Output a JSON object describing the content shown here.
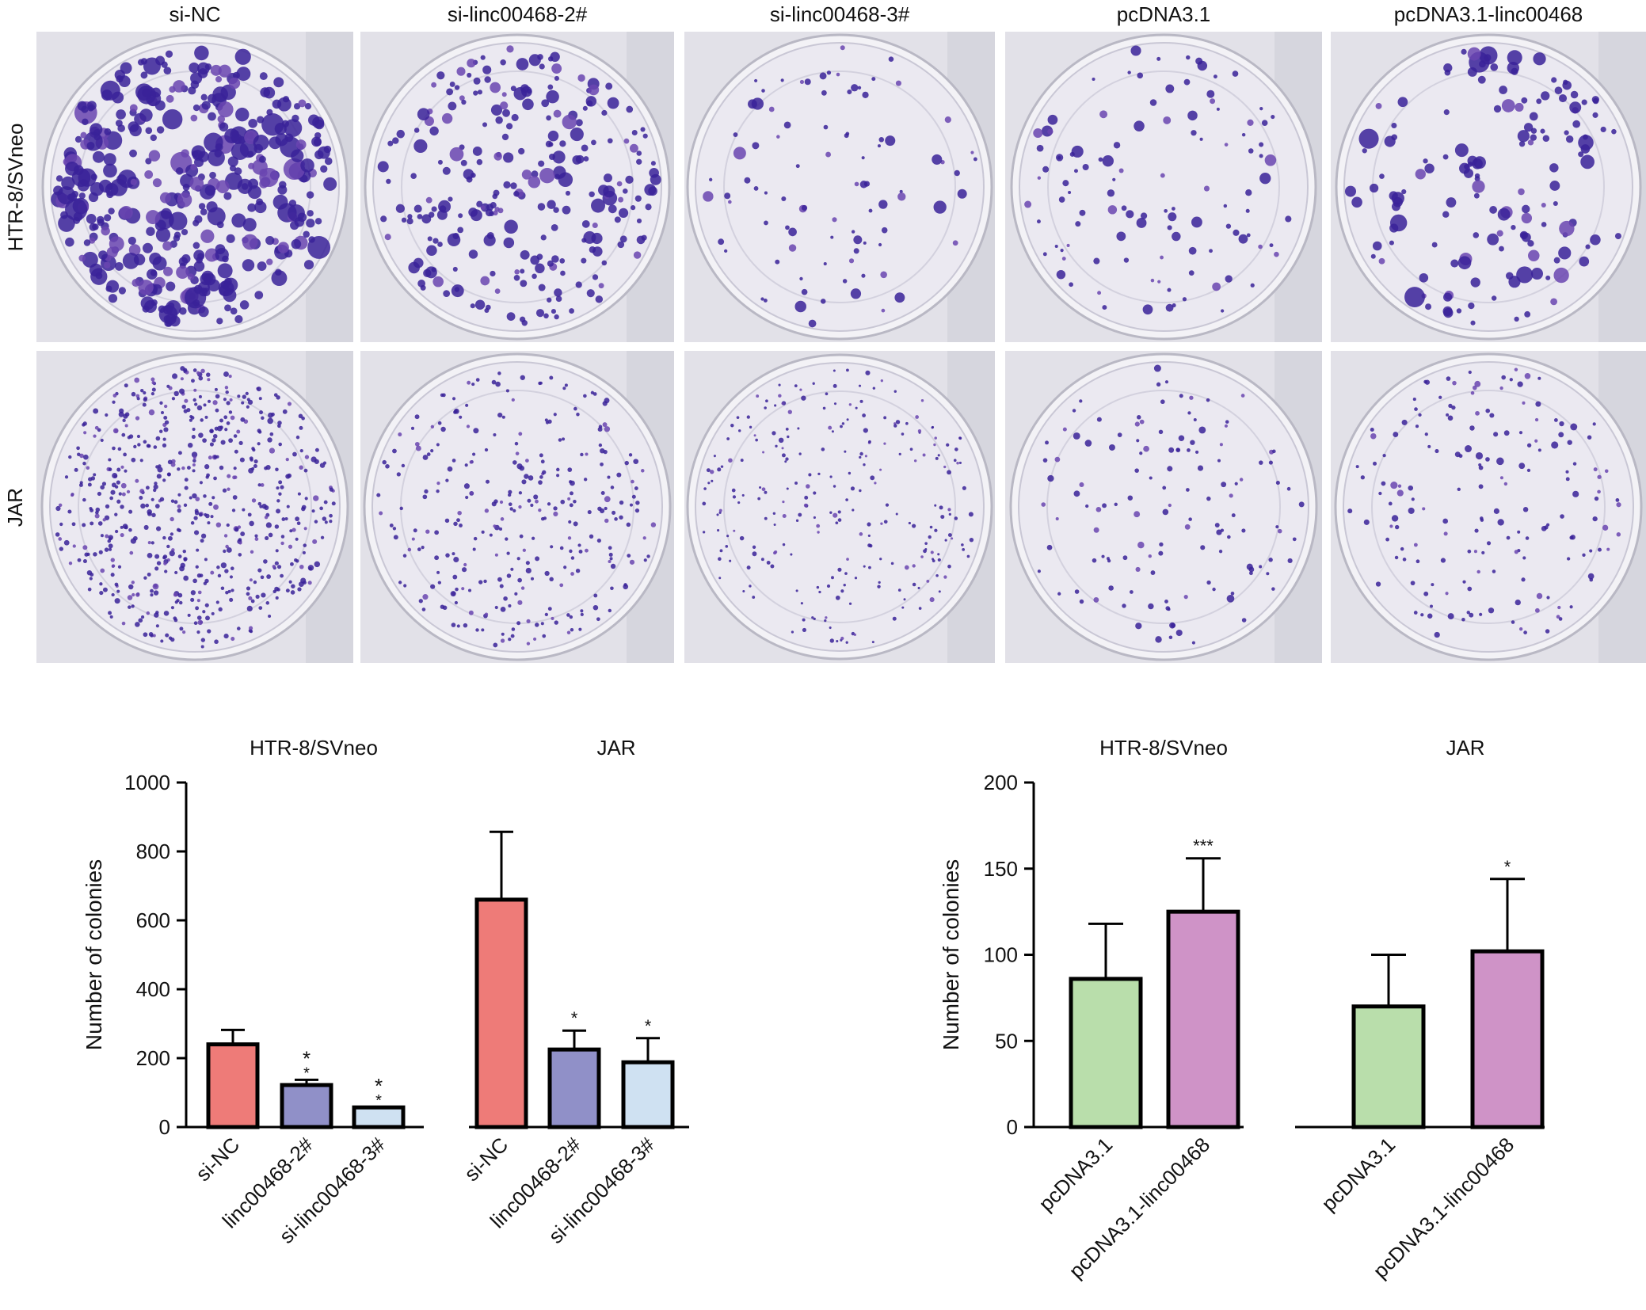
{
  "columns": [
    "si-NC",
    "si-linc00468-2#",
    "si-linc00468-3#",
    "pcDNA3.1",
    "pcDNA3.1-linc00468"
  ],
  "rows": [
    "HTR-8/SVneo",
    "JAR"
  ],
  "colors": {
    "red": "#ee7b78",
    "purple": "#9090c8",
    "lightblue": "#cfe1f2",
    "green": "#b9deab",
    "pink": "#cf93c7",
    "colony": "#3a2299",
    "colony_light": "#6a45b0",
    "plate_bg": "#ebe9f1"
  },
  "chart_data": [
    {
      "type": "bar",
      "group_titles": [
        "HTR-8/SVneo",
        "JAR"
      ],
      "ylabel": "Number of colonies",
      "ylim": [
        0,
        1000
      ],
      "yticks": [
        0,
        200,
        400,
        600,
        800,
        1000
      ],
      "groups": [
        {
          "name": "HTR-8/SVneo",
          "bars": [
            {
              "label": "si-NC",
              "value": 240,
              "err": 42,
              "sig": "",
              "color": "red"
            },
            {
              "label": "linc00468-2#",
              "value": 122,
              "err": 15,
              "sig": "**",
              "color": "purple"
            },
            {
              "label": "si-linc00468-3#",
              "value": 57,
              "err": 0,
              "sig": "**",
              "color": "lightblue"
            }
          ]
        },
        {
          "name": "JAR",
          "bars": [
            {
              "label": "si-NC",
              "value": 660,
              "err": 197,
              "sig": "",
              "color": "red"
            },
            {
              "label": "linc00468-2#",
              "value": 225,
              "err": 55,
              "sig": "*",
              "color": "purple"
            },
            {
              "label": "si-linc00468-3#",
              "value": 188,
              "err": 70,
              "sig": "*",
              "color": "lightblue"
            }
          ]
        }
      ]
    },
    {
      "type": "bar",
      "group_titles": [
        "HTR-8/SVneo",
        "JAR"
      ],
      "ylabel": "Number of colonies",
      "ylim": [
        0,
        200
      ],
      "yticks": [
        0,
        50,
        100,
        150,
        200
      ],
      "groups": [
        {
          "name": "HTR-8/SVneo",
          "bars": [
            {
              "label": "pcDNA3.1",
              "value": 86,
              "err": 32,
              "sig": "",
              "color": "green"
            },
            {
              "label": "pcDNA3.1-linc00468",
              "value": 125,
              "err": 31,
              "sig": "***",
              "color": "pink"
            }
          ]
        },
        {
          "name": "JAR",
          "bars": [
            {
              "label": "pcDNA3.1",
              "value": 70,
              "err": 30,
              "sig": "",
              "color": "green"
            },
            {
              "label": "pcDNA3.1-linc00468",
              "value": 102,
              "err": 42,
              "sig": "*",
              "color": "pink"
            }
          ]
        }
      ]
    }
  ]
}
